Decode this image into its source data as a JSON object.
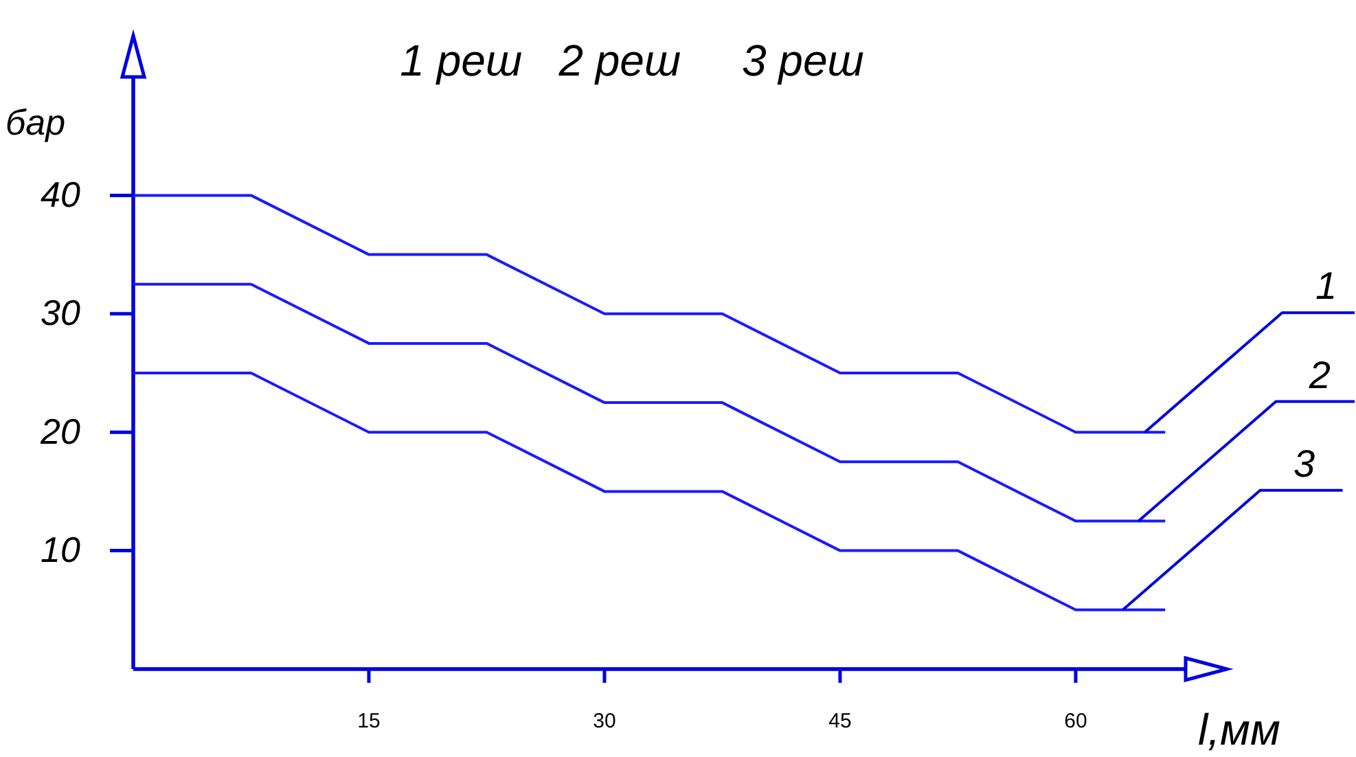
{
  "chart_data": {
    "type": "line",
    "title": "1 реш   2 реш     3 реш",
    "ylabel": "бар",
    "xlabel": "l,мм",
    "x": [
      0,
      7.5,
      15,
      22.5,
      30,
      37.5,
      45,
      52.5,
      60,
      65.7
    ],
    "series": [
      {
        "color": "#1a1aff",
        "values": [
          40,
          40,
          35,
          35,
          30,
          30,
          25,
          25,
          20,
          20
        ]
      },
      {
        "color": "#1a1aff",
        "values": [
          32.5,
          32.5,
          27.5,
          27.5,
          22.5,
          22.5,
          17.5,
          17.5,
          12.5,
          12.5
        ]
      },
      {
        "color": "#1a1aff",
        "values": [
          25,
          25,
          20,
          20,
          15,
          15,
          10,
          10,
          5,
          5
        ]
      }
    ],
    "annotations": [
      {
        "text": "1",
        "x": 64.4,
        "y": 20
      },
      {
        "text": "2",
        "x": 64,
        "y": 12.5
      },
      {
        "text": "3",
        "x": 63,
        "y": 5
      }
    ],
    "xlim": [
      0,
      67
    ],
    "ylim": [
      0,
      50
    ],
    "xticks": [
      15,
      30,
      45,
      60
    ],
    "yticks": [
      10,
      20,
      30,
      40
    ],
    "grid": false,
    "marker": "none",
    "line_style": "solid"
  }
}
